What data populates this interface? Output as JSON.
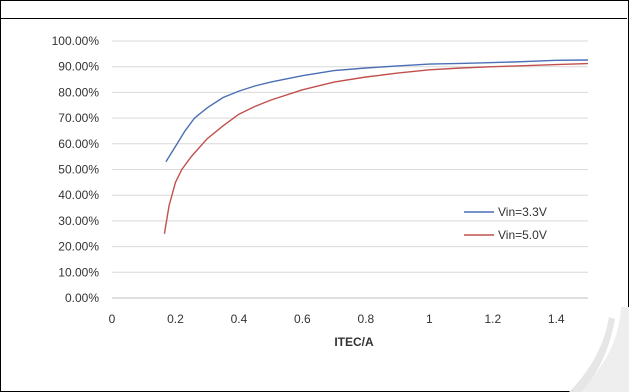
{
  "chart_data": {
    "type": "line",
    "title": "",
    "xlabel": "ITEC/A",
    "ylabel": "",
    "xlim": [
      0,
      1.5
    ],
    "ylim": [
      0,
      100
    ],
    "x_ticks": [
      0,
      0.2,
      0.4,
      0.6,
      0.8,
      1,
      1.2,
      1.4
    ],
    "x_tick_labels": [
      "0",
      "0.2",
      "0.4",
      "0.6",
      "0.8",
      "1",
      "1.2",
      "1.4"
    ],
    "y_ticks": [
      0,
      10,
      20,
      30,
      40,
      50,
      60,
      70,
      80,
      90,
      100
    ],
    "y_tick_labels": [
      "0.00%",
      "10.00%",
      "20.00%",
      "30.00%",
      "40.00%",
      "50.00%",
      "60.00%",
      "70.00%",
      "80.00%",
      "90.00%",
      "100.00%"
    ],
    "grid": "horizontal",
    "legend_position": "lower-right",
    "series": [
      {
        "name": "Vin=3.3V",
        "color": "#4a6fb5",
        "x": [
          0.17,
          0.2,
          0.23,
          0.26,
          0.3,
          0.35,
          0.4,
          0.45,
          0.5,
          0.6,
          0.7,
          0.8,
          0.9,
          1.0,
          1.1,
          1.2,
          1.3,
          1.4,
          1.5
        ],
        "y": [
          53,
          59,
          65,
          70,
          74,
          78,
          80.5,
          82.5,
          84,
          86.5,
          88.5,
          89.5,
          90.3,
          91,
          91.3,
          91.6,
          92,
          92.5,
          92.6
        ]
      },
      {
        "name": "Vin=5.0V",
        "color": "#c0504d",
        "x": [
          0.165,
          0.18,
          0.2,
          0.22,
          0.25,
          0.3,
          0.35,
          0.4,
          0.45,
          0.5,
          0.6,
          0.7,
          0.8,
          0.9,
          1.0,
          1.1,
          1.2,
          1.3,
          1.4,
          1.5
        ],
        "y": [
          25,
          36,
          45,
          50,
          55,
          62,
          67,
          71.5,
          74.5,
          77,
          81,
          84,
          86,
          87.5,
          88.8,
          89.5,
          90,
          90.4,
          90.8,
          91.2
        ]
      }
    ]
  },
  "colors": {
    "grid": "#d9d9d9",
    "axis": "#bfbfbf",
    "watermark": "#e6e6e6"
  }
}
